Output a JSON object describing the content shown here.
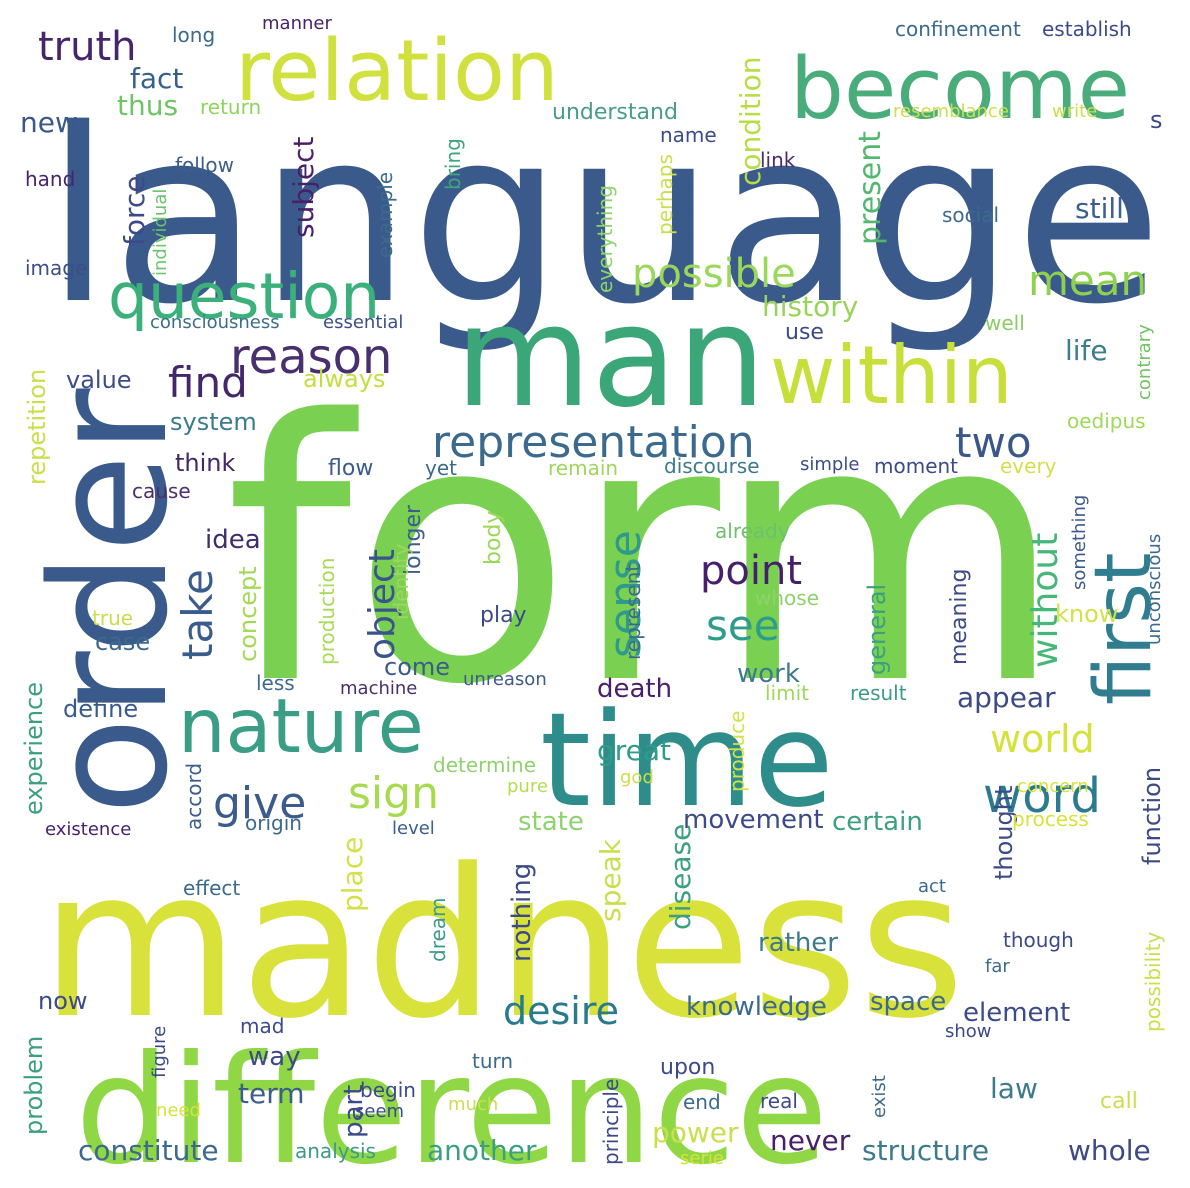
{
  "words": [
    {
      "text": "form",
      "color": "#7ad151"
    },
    {
      "text": "language",
      "color": "#3b5a8c"
    },
    {
      "text": "madness",
      "color": "#d8e23b"
    },
    {
      "text": "difference",
      "color": "#8fd744"
    },
    {
      "text": "man",
      "color": "#3ba778"
    },
    {
      "text": "time",
      "color": "#2e8d8a"
    },
    {
      "text": "order",
      "color": "#3b5a8c"
    },
    {
      "text": "relation",
      "color": "#d0e13f"
    },
    {
      "text": "become",
      "color": "#4aac7a"
    },
    {
      "text": "within",
      "color": "#c7df3b"
    },
    {
      "text": "nature",
      "color": "#3a9e87"
    },
    {
      "text": "first",
      "color": "#2f7d8e"
    },
    {
      "text": "question",
      "color": "#3bb07a"
    },
    {
      "text": "representation",
      "color": "#3c6a8c"
    },
    {
      "text": "reason",
      "color": "#482f6e"
    },
    {
      "text": "sense",
      "color": "#2f9a8c"
    },
    {
      "text": "truth",
      "color": "#46256b"
    },
    {
      "text": "mean",
      "color": "#8fd14f"
    },
    {
      "text": "possible",
      "color": "#9bd85a"
    },
    {
      "text": "find",
      "color": "#43276a"
    },
    {
      "text": "take",
      "color": "#3a5c8c"
    },
    {
      "text": "two",
      "color": "#3b5789"
    },
    {
      "text": "point",
      "color": "#461f6a"
    },
    {
      "text": "give",
      "color": "#3a5b8c"
    },
    {
      "text": "sign",
      "color": "#a7db4e"
    },
    {
      "text": "word",
      "color": "#2b7a8d"
    },
    {
      "text": "world",
      "color": "#d6e23c"
    },
    {
      "text": "see",
      "color": "#2f9c8a"
    },
    {
      "text": "object",
      "color": "#3a548a"
    },
    {
      "text": "desire",
      "color": "#297a8d"
    },
    {
      "text": "without",
      "color": "#47b779"
    },
    {
      "text": "fact",
      "color": "#375f8c"
    },
    {
      "text": "condition",
      "color": "#b7dd47"
    },
    {
      "text": "subject",
      "color": "#4a1f6a"
    },
    {
      "text": "force",
      "color": "#3c4a88"
    },
    {
      "text": "present",
      "color": "#52b86e"
    },
    {
      "text": "history",
      "color": "#98d45a"
    },
    {
      "text": "still",
      "color": "#3b608c"
    },
    {
      "text": "life",
      "color": "#3d7d8c"
    },
    {
      "text": "new",
      "color": "#3a5889"
    },
    {
      "text": "thus",
      "color": "#6dc566"
    },
    {
      "text": "return",
      "color": "#8ed45c"
    },
    {
      "text": "understand",
      "color": "#479d8a"
    },
    {
      "text": "name",
      "color": "#3b4a88"
    },
    {
      "text": "follow",
      "color": "#3c5e8c"
    },
    {
      "text": "bring",
      "color": "#40a47d"
    },
    {
      "text": "example",
      "color": "#3b6b8c"
    },
    {
      "text": "everything",
      "color": "#8bd56a"
    },
    {
      "text": "perhaps",
      "color": "#c9e04e"
    },
    {
      "text": "link",
      "color": "#4b2b6b"
    },
    {
      "text": "social",
      "color": "#3b6a8c"
    },
    {
      "text": "hand",
      "color": "#47246b"
    },
    {
      "text": "individual",
      "color": "#6ac46e"
    },
    {
      "text": "image",
      "color": "#3d4d86"
    },
    {
      "text": "consciousness",
      "color": "#3c6e8c"
    },
    {
      "text": "essential",
      "color": "#3c4e88"
    },
    {
      "text": "use",
      "color": "#3d4a88"
    },
    {
      "text": "well",
      "color": "#8ccc65"
    },
    {
      "text": "contrary",
      "color": "#70c262"
    },
    {
      "text": "oedipus",
      "color": "#a0d85a"
    },
    {
      "text": "always",
      "color": "#c1df3e"
    },
    {
      "text": "value",
      "color": "#3c4d87"
    },
    {
      "text": "system",
      "color": "#3b7b8c"
    },
    {
      "text": "repetition",
      "color": "#c7e04b"
    },
    {
      "text": "think",
      "color": "#44266b"
    },
    {
      "text": "cause",
      "color": "#4a2f6c"
    },
    {
      "text": "flow",
      "color": "#3c5b8c"
    },
    {
      "text": "yet",
      "color": "#3b6a8c"
    },
    {
      "text": "remain",
      "color": "#9ed65e"
    },
    {
      "text": "discourse",
      "color": "#3c7a8c"
    },
    {
      "text": "simple",
      "color": "#3c4d87"
    },
    {
      "text": "moment",
      "color": "#3c4a88"
    },
    {
      "text": "every",
      "color": "#d2e14a"
    },
    {
      "text": "longer",
      "color": "#3b5e8c"
    },
    {
      "text": "idea",
      "color": "#3f2d6c"
    },
    {
      "text": "concept",
      "color": "#a4d956"
    },
    {
      "text": "true",
      "color": "#c5df4e"
    },
    {
      "text": "case",
      "color": "#3c6a8c"
    },
    {
      "text": "experience",
      "color": "#3ca07e"
    },
    {
      "text": "define",
      "color": "#3b5a8c"
    },
    {
      "text": "less",
      "color": "#3c6a8c"
    },
    {
      "text": "machine",
      "color": "#4a2d6b"
    },
    {
      "text": "unreason",
      "color": "#3c5a8a"
    },
    {
      "text": "come",
      "color": "#3c5a8c"
    },
    {
      "text": "identity",
      "color": "#9ed65e"
    },
    {
      "text": "body",
      "color": "#9bd85a"
    },
    {
      "text": "production",
      "color": "#a8db58"
    },
    {
      "text": "play",
      "color": "#3a4a86"
    },
    {
      "text": "represent",
      "color": "#3c6a8c"
    },
    {
      "text": "already",
      "color": "#6cc26a"
    },
    {
      "text": "whose",
      "color": "#8fd26d"
    },
    {
      "text": "meaning",
      "color": "#3d4a88"
    },
    {
      "text": "general",
      "color": "#3ba07e"
    },
    {
      "text": "know",
      "color": "#d3e14a"
    },
    {
      "text": "something",
      "color": "#3c5a8c"
    },
    {
      "text": "unconscious",
      "color": "#3c6a8c"
    },
    {
      "text": "work",
      "color": "#3c7a8c"
    },
    {
      "text": "death",
      "color": "#4a1f6a"
    },
    {
      "text": "appear",
      "color": "#3c4a88"
    },
    {
      "text": "limit",
      "color": "#a0d85a"
    },
    {
      "text": "result",
      "color": "#3c9a8c"
    },
    {
      "text": "produce",
      "color": "#d3e14a"
    },
    {
      "text": "great",
      "color": "#2f9c8a"
    },
    {
      "text": "determine",
      "color": "#8fd26d"
    },
    {
      "text": "pure",
      "color": "#b4dd52"
    },
    {
      "text": "god",
      "color": "#c8e04e"
    },
    {
      "text": "concern",
      "color": "#d8e23b"
    },
    {
      "text": "function",
      "color": "#3c4a88"
    },
    {
      "text": "accord",
      "color": "#3c5e8c"
    },
    {
      "text": "existence",
      "color": "#4a1f6a"
    },
    {
      "text": "origin",
      "color": "#3c6a8c"
    },
    {
      "text": "level",
      "color": "#3c5e8c"
    },
    {
      "text": "state",
      "color": "#8fd26d"
    },
    {
      "text": "movement",
      "color": "#3c4a88"
    },
    {
      "text": "certain",
      "color": "#3ca07e"
    },
    {
      "text": "thought",
      "color": "#3c4a88"
    },
    {
      "text": "process",
      "color": "#d8e23b"
    },
    {
      "text": "place",
      "color": "#d3e14a"
    },
    {
      "text": "nothing",
      "color": "#3c4a88"
    },
    {
      "text": "speak",
      "color": "#c8e04e"
    },
    {
      "text": "disease",
      "color": "#3ba07e"
    },
    {
      "text": "effect",
      "color": "#3c6a8c"
    },
    {
      "text": "act",
      "color": "#3c6a8c"
    },
    {
      "text": "possibility",
      "color": "#c8e04e"
    },
    {
      "text": "dream",
      "color": "#3c9a8c"
    },
    {
      "text": "rather",
      "color": "#3c7a8c"
    },
    {
      "text": "though",
      "color": "#3c4a88"
    },
    {
      "text": "far",
      "color": "#3c6a8c"
    },
    {
      "text": "now",
      "color": "#3c4a88"
    },
    {
      "text": "knowledge",
      "color": "#3c6a8c"
    },
    {
      "text": "space",
      "color": "#3c6a8c"
    },
    {
      "text": "element",
      "color": "#3c4a88"
    },
    {
      "text": "show",
      "color": "#3c4a88"
    },
    {
      "text": "problem",
      "color": "#3ca07e"
    },
    {
      "text": "figure",
      "color": "#3c4a88"
    },
    {
      "text": "mad",
      "color": "#3c4a88"
    },
    {
      "text": "way",
      "color": "#3c4a88"
    },
    {
      "text": "turn",
      "color": "#3c6a8c"
    },
    {
      "text": "upon",
      "color": "#3c4a88"
    },
    {
      "text": "exist",
      "color": "#3c6a8c"
    },
    {
      "text": "term",
      "color": "#3c5e8c"
    },
    {
      "text": "part",
      "color": "#3c4a88"
    },
    {
      "text": "law",
      "color": "#3c7a8c"
    },
    {
      "text": "begin",
      "color": "#3c4a88"
    },
    {
      "text": "seem",
      "color": "#3c4a88"
    },
    {
      "text": "need",
      "color": "#d8e23b"
    },
    {
      "text": "much",
      "color": "#c8e04e"
    },
    {
      "text": "principle",
      "color": "#3c4a88"
    },
    {
      "text": "end",
      "color": "#3c6a8c"
    },
    {
      "text": "real",
      "color": "#3c4a88"
    },
    {
      "text": "call",
      "color": "#c8e04e"
    },
    {
      "text": "constitute",
      "color": "#3c6a8c"
    },
    {
      "text": "analysis",
      "color": "#3c9a8c"
    },
    {
      "text": "another",
      "color": "#3ca07e"
    },
    {
      "text": "power",
      "color": "#c8e04e"
    },
    {
      "text": "never",
      "color": "#4a1f6a"
    },
    {
      "text": "structure",
      "color": "#3c7a8c"
    },
    {
      "text": "whole",
      "color": "#3c4a88"
    },
    {
      "text": "serie",
      "color": "#d8e23b"
    },
    {
      "text": "long",
      "color": "#3c6a8c"
    },
    {
      "text": "manner",
      "color": "#4a1f6a"
    },
    {
      "text": "confinement",
      "color": "#3c6a8c"
    },
    {
      "text": "establish",
      "color": "#3c4a88"
    },
    {
      "text": "resemblance",
      "color": "#c8e04e"
    },
    {
      "text": "write",
      "color": "#c8e04e"
    },
    {
      "text": "s",
      "color": "#3c4a88"
    }
  ]
}
